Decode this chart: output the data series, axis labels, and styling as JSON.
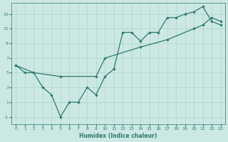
{
  "xlabel": "Humidex (Indice chaleur)",
  "bg_color": "#cce8e4",
  "line_color": "#2d7a6a",
  "grid_color": "#aad4cc",
  "xlim": [
    -0.5,
    23.5
  ],
  "ylim": [
    -2,
    14.5
  ],
  "xticks": [
    0,
    1,
    2,
    3,
    4,
    5,
    6,
    7,
    8,
    9,
    10,
    11,
    12,
    13,
    14,
    15,
    16,
    17,
    18,
    19,
    20,
    21,
    22,
    23
  ],
  "yticks": [
    -1,
    1,
    3,
    5,
    7,
    9,
    11,
    13
  ],
  "line1_x": [
    0,
    1,
    2,
    3,
    4,
    5,
    6,
    7,
    8,
    9,
    10,
    11,
    12,
    13,
    14,
    15,
    16,
    17,
    18,
    19,
    20,
    21,
    22,
    23
  ],
  "line1_y": [
    6,
    5,
    5,
    3,
    2,
    -1,
    1,
    1,
    3,
    2,
    4.5,
    5.5,
    10.5,
    10.5,
    9.3,
    10.5,
    10.5,
    12.5,
    12.5,
    13.0,
    13.3,
    14.0,
    12.0,
    11.5
  ],
  "line2_x": [
    0,
    2,
    5,
    9,
    10,
    14,
    17,
    20,
    21,
    22,
    23
  ],
  "line2_y": [
    6,
    5,
    4.5,
    4.5,
    7.0,
    8.5,
    9.5,
    11.0,
    11.5,
    12.5,
    12.0
  ]
}
